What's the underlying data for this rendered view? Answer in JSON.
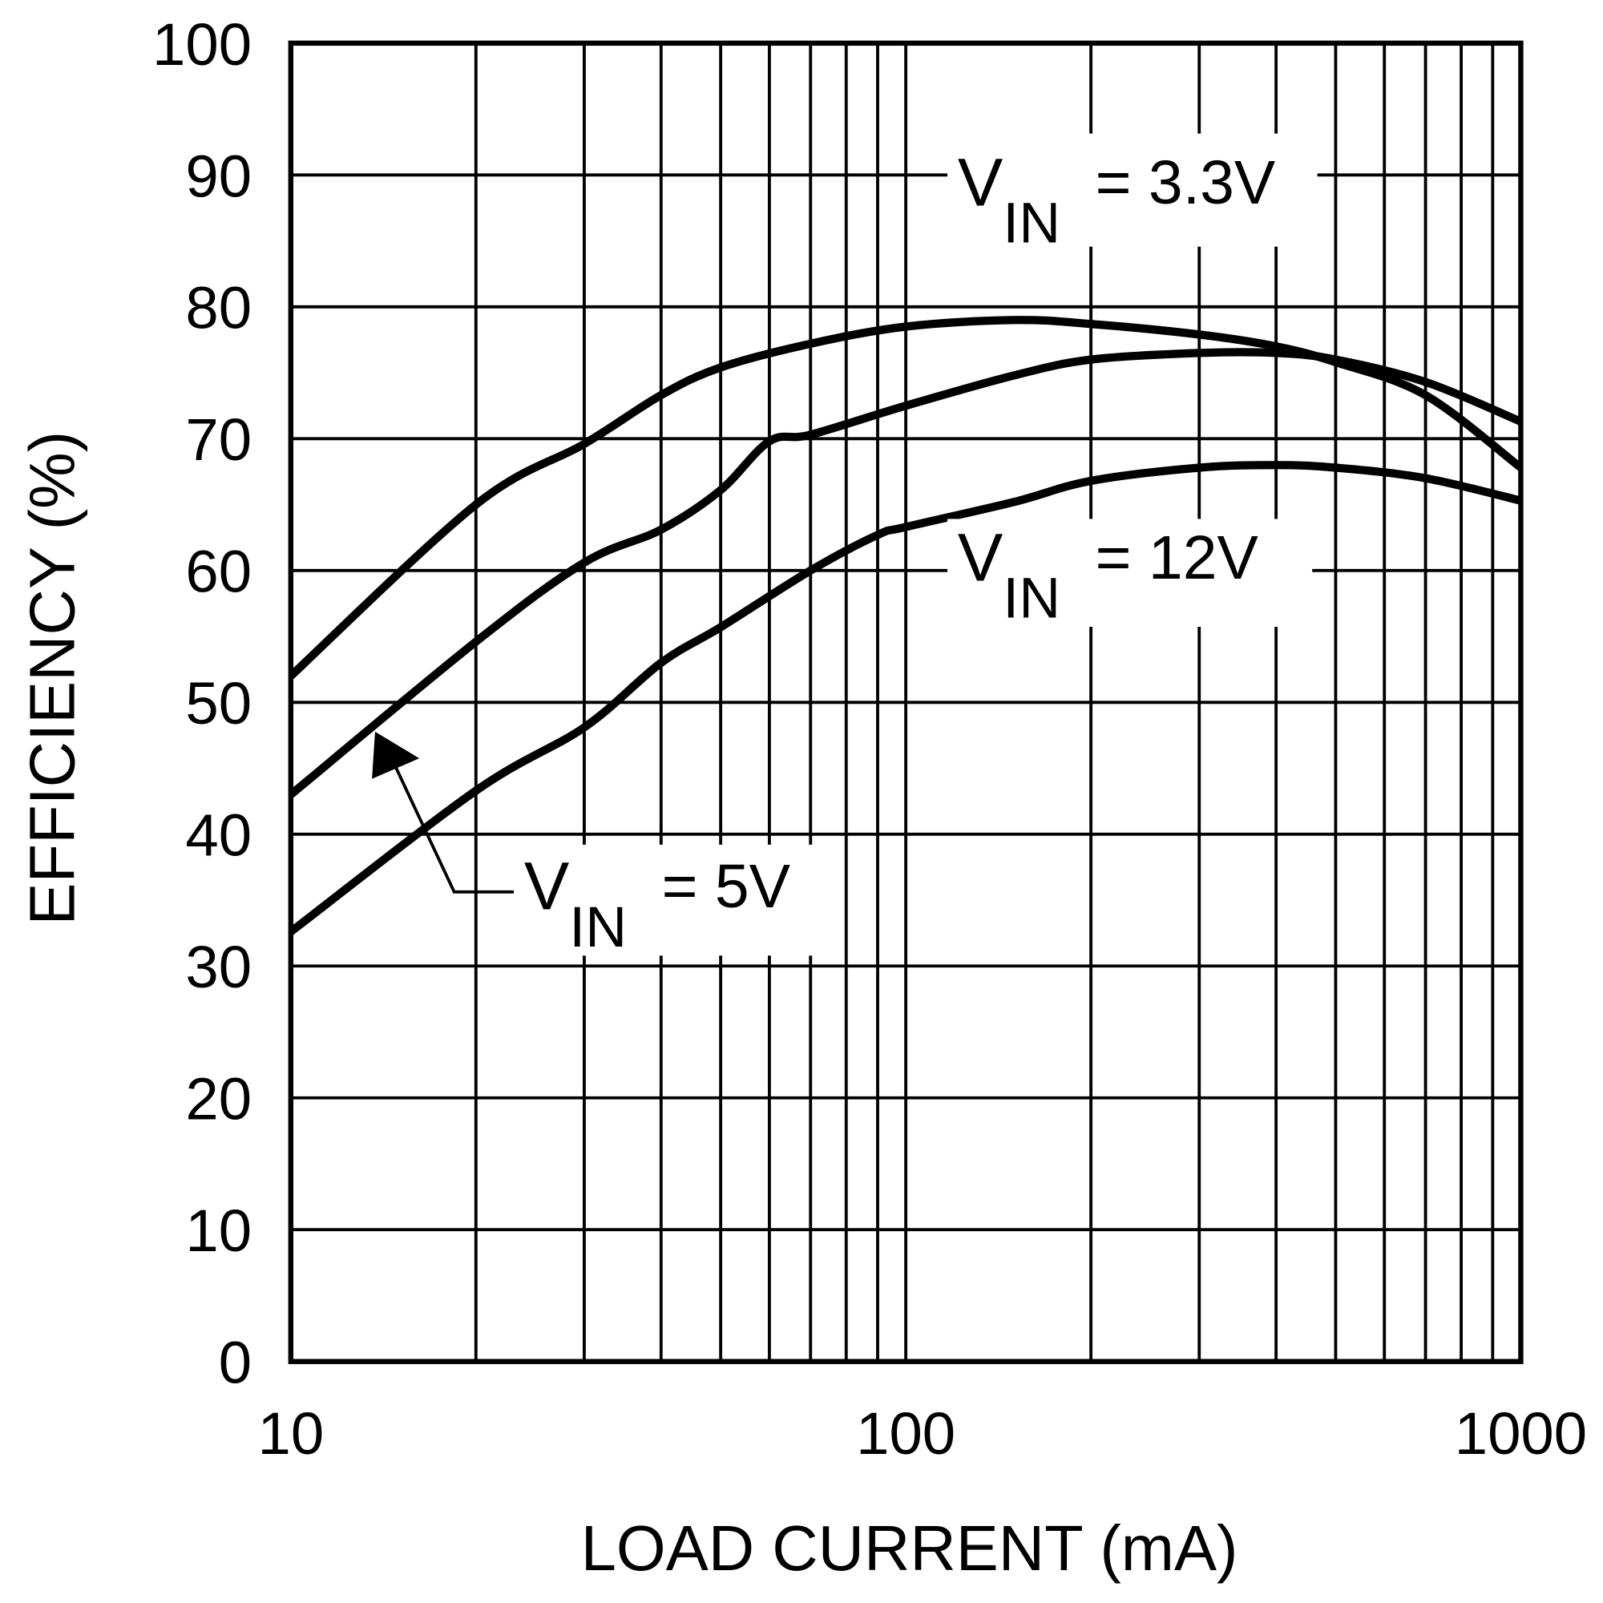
{
  "chart_data": {
    "type": "line",
    "x_label": "LOAD CURRENT (mA)",
    "y_label": "EFFICIENCY (%)",
    "log_x": true,
    "grid": true,
    "xlim": [
      10,
      1000
    ],
    "xticks": [
      10,
      100,
      1000
    ],
    "x_minor_gridlines": [
      20,
      30,
      40,
      50,
      60,
      70,
      80,
      90,
      200,
      300,
      400,
      500,
      600,
      700,
      800,
      900
    ],
    "ylim": [
      0,
      100
    ],
    "yticks": [
      0,
      10,
      20,
      30,
      40,
      50,
      60,
      70,
      80,
      90,
      100
    ],
    "series": [
      {
        "color": "#000000",
        "x": [
          10,
          20,
          30,
          40,
          50,
          70,
          100,
          150,
          200,
          300,
          400,
          500,
          700,
          1000
        ],
        "values": [
          52,
          65,
          69.6,
          73.3,
          75.4,
          77.2,
          78.5,
          79,
          78.7,
          77.9,
          77,
          75.8,
          73.3,
          67.8
        ]
      },
      {
        "color": "#000000",
        "x": [
          10,
          20,
          30,
          40,
          50,
          60,
          70,
          100,
          150,
          200,
          300,
          400,
          500,
          700,
          1000
        ],
        "values": [
          43,
          54.6,
          60.6,
          63.1,
          66.1,
          69.8,
          70.3,
          72.5,
          74.8,
          76,
          76.5,
          76.5,
          76,
          74.3,
          71.3
        ]
      },
      {
        "color": "#000000",
        "x": [
          10,
          20,
          30,
          40,
          50,
          70,
          90,
          100,
          150,
          200,
          300,
          400,
          500,
          700,
          1000
        ],
        "values": [
          32.6,
          43.3,
          48.1,
          53,
          55.7,
          60,
          62.7,
          63.3,
          65.2,
          66.8,
          67.8,
          68,
          67.8,
          67,
          65.3
        ]
      }
    ],
    "annotations": [
      {
        "main": "V",
        "sub": "IN",
        "rest": "= 3.3V"
      },
      {
        "main": "V",
        "sub": "IN",
        "rest": "= 12V"
      },
      {
        "main": "V",
        "sub": "IN",
        "rest": "= 5V"
      }
    ]
  }
}
